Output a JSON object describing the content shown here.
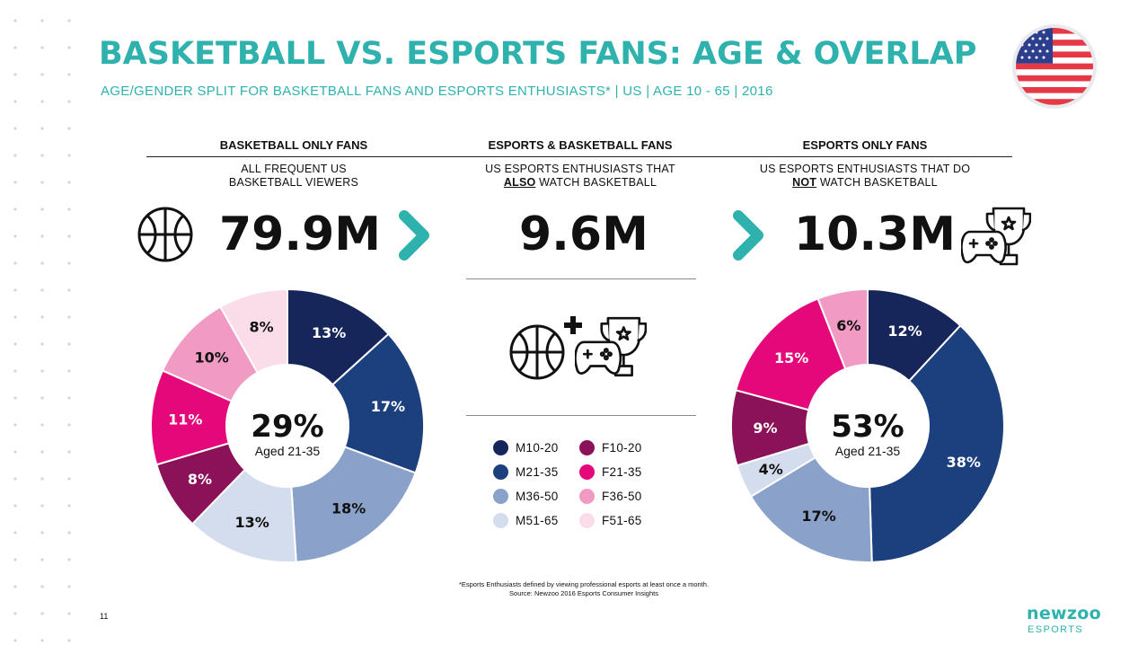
{
  "header": {
    "title": "BASKETBALL VS. ESPORTS FANS: AGE & OVERLAP",
    "subtitle": "AGE/GENDER SPLIT FOR BASKETBALL FANS AND ESPORTS ENTHUSIASTS* | US | AGE 10 - 65 | 2016"
  },
  "columns": {
    "left": {
      "heading": "BASKETBALL ONLY FANS",
      "desc_line1": "ALL FREQUENT US",
      "desc_line2": "BASKETBALL VIEWERS",
      "value": "79.9M",
      "center_pct": "29%",
      "center_label": "Aged 21-35"
    },
    "middle": {
      "heading": "ESPORTS & BASKETBALL FANS",
      "desc_line1": "US ESPORTS ENTHUSIASTS THAT",
      "desc_emph": "ALSO",
      "desc_rest": " WATCH BASKETBALL",
      "value": "9.6M"
    },
    "right": {
      "heading": "ESPORTS ONLY FANS",
      "desc_line1": "US ESPORTS ENTHUSIASTS THAT DO",
      "desc_emph": "NOT",
      "desc_rest": " WATCH BASKETBALL",
      "value": "10.3M",
      "center_pct": "53%",
      "center_label": "Aged 21-35"
    }
  },
  "icons": {
    "flag": "us-flag-icon",
    "basketball": "basketball-icon",
    "gaming": "gamepad-trophy-icon",
    "plus": "plus-icon",
    "chevron": "chevron-right-icon"
  },
  "colors": {
    "teal": "#2fb2ad",
    "M10-20": "#17265a",
    "M21-35": "#1c3f7e",
    "M36-50": "#8aa2c9",
    "M51-65": "#d3dded",
    "F10-20": "#8b1259",
    "F21-35": "#e4087a",
    "F36-50": "#f09ac4",
    "F51-65": "#fbdde9"
  },
  "legend": {
    "items": [
      "M10-20",
      "M21-35",
      "M36-50",
      "M51-65",
      "F10-20",
      "F21-35",
      "F36-50",
      "F51-65"
    ]
  },
  "chart_data": [
    {
      "type": "pie",
      "categories": [
        "M10-20",
        "M21-35",
        "M36-50",
        "M51-65",
        "F10-20",
        "F21-35",
        "F36-50",
        "F51-65"
      ],
      "values": [
        13,
        17,
        18,
        13,
        8,
        11,
        10,
        8
      ],
      "labels": [
        "13%",
        "17%",
        "18%",
        "13%",
        "8%",
        "11%",
        "10%",
        "8%"
      ],
      "center_text": "29%",
      "center_subtext": "Aged 21-35"
    },
    {
      "type": "pie",
      "categories": [
        "M10-20",
        "M21-35",
        "M36-50",
        "M51-65",
        "F10-20",
        "F21-35",
        "F36-50",
        "F51-65"
      ],
      "values": [
        12,
        38,
        17,
        4,
        9,
        15,
        6,
        0
      ],
      "labels": [
        "12%",
        "38%",
        "17%",
        "4%",
        "9%",
        "15%",
        "6%",
        ""
      ],
      "center_text": "53%",
      "center_subtext": "Aged 21-35"
    }
  ],
  "footnote": {
    "line1": "*Esports Enthusiasts defined by viewing professional esports at least once a month.",
    "line2": "Source: Newzoo 2016 Esports Consumer Insights"
  },
  "page_number": "11",
  "logo": {
    "main": "newzoo",
    "sub": "ESPORTS"
  }
}
